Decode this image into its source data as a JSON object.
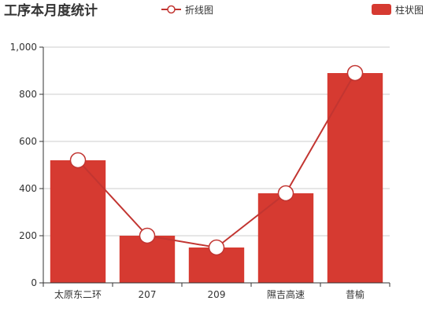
{
  "chart_data": {
    "type": "bar",
    "title": "工序本月度统计",
    "categories": [
      "太原东二环",
      "207",
      "209",
      "隰吉高速",
      "昔榆"
    ],
    "series": [
      {
        "name": "折线图",
        "type": "line",
        "values": [
          520,
          200,
          150,
          380,
          890
        ],
        "color": "#c23531"
      },
      {
        "name": "柱状图",
        "type": "bar",
        "values": [
          520,
          200,
          150,
          380,
          890
        ],
        "color": "#d63a31"
      }
    ],
    "ylim": [
      0,
      1000
    ],
    "yticks": [
      "0",
      "200",
      "400",
      "600",
      "800",
      "1,000"
    ],
    "xlabel": "",
    "ylabel": "",
    "grid": true,
    "legend_position": "top"
  },
  "colors": {
    "axis": "#333333",
    "grid": "#cccccc",
    "text": "#333333"
  }
}
